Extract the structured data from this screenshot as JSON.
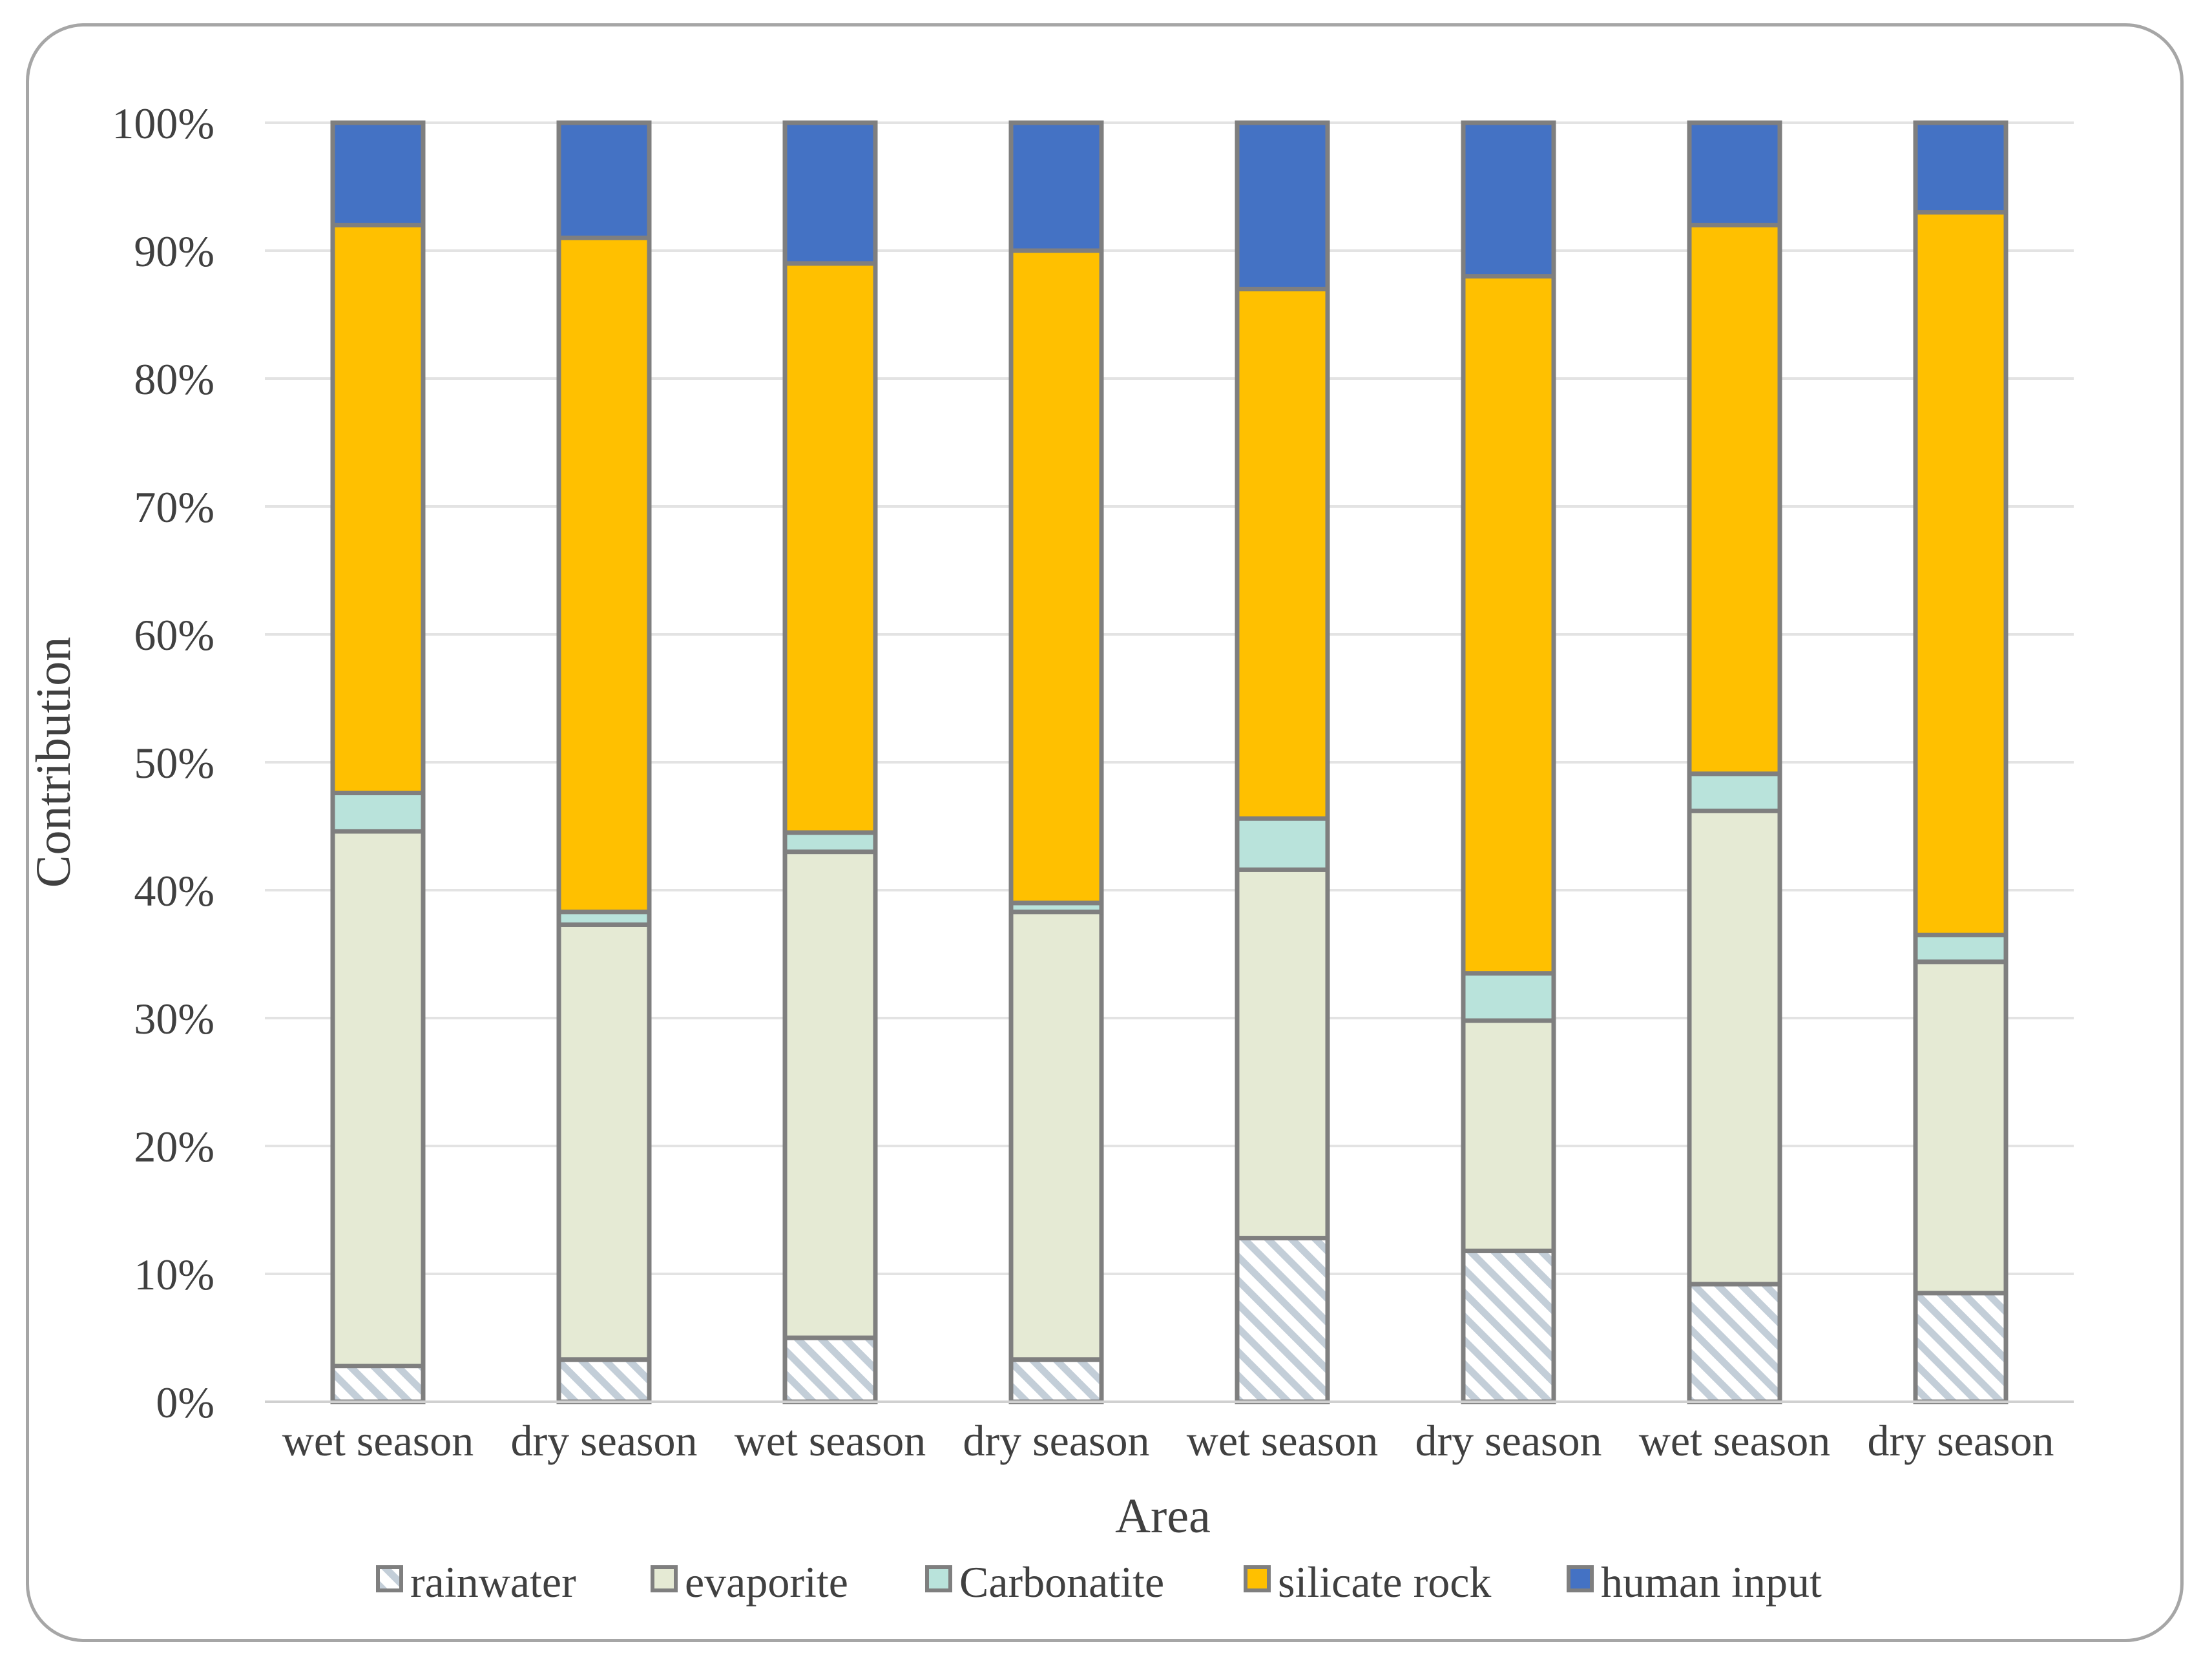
{
  "chart_data": {
    "type": "bar",
    "stacked": true,
    "title": "",
    "xlabel": "Area",
    "ylabel": "Contribution",
    "ylim": [
      0,
      100
    ],
    "yticks": [
      "0%",
      "10%",
      "20%",
      "30%",
      "40%",
      "50%",
      "60%",
      "70%",
      "80%",
      "90%",
      "100%"
    ],
    "categories": [
      "wet season",
      "dry season",
      "wet season",
      "dry season",
      "wet season",
      "dry season",
      "wet season",
      "dry season"
    ],
    "legend_position": "bottom",
    "series": [
      {
        "name": "rainwater",
        "color": "#d3dce4",
        "pattern": "hatch",
        "values": [
          2.8,
          3.3,
          5.0,
          3.3,
          12.8,
          11.8,
          9.2,
          8.5
        ]
      },
      {
        "name": "evaporite",
        "color": "#e5ead4",
        "values": [
          41.8,
          34.0,
          38.0,
          35.0,
          28.8,
          18.0,
          37.0,
          25.9
        ]
      },
      {
        "name": "Carbonatite",
        "color": "#b9e3db",
        "values": [
          3.0,
          1.0,
          1.5,
          0.7,
          4.0,
          3.7,
          2.9,
          2.1
        ]
      },
      {
        "name": "silicate rock",
        "color": "#ffc000",
        "values": [
          44.4,
          52.7,
          44.5,
          51.0,
          41.4,
          54.5,
          42.9,
          56.5
        ]
      },
      {
        "name": "human input",
        "color": "#4472c4",
        "values": [
          8.0,
          9.0,
          11.0,
          10.0,
          13.0,
          12.0,
          8.0,
          7.0
        ]
      }
    ]
  }
}
